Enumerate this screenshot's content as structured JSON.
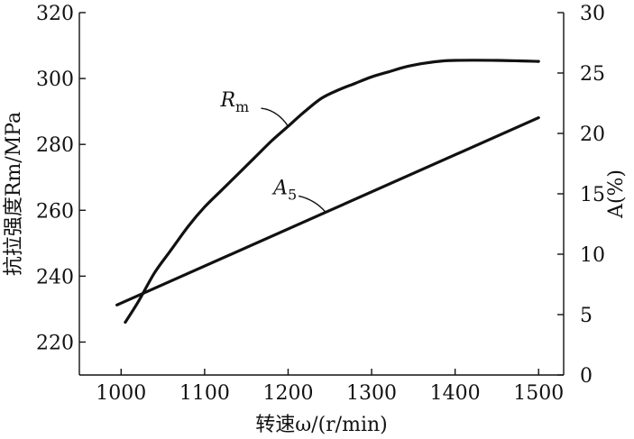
{
  "chart_data": {
    "type": "line",
    "xlabel": "转速ω/(r/min)",
    "ylabel_left": "抗拉强度Rm/MPa",
    "ylabel_right": "A(%)",
    "xlim": [
      950,
      1530
    ],
    "ylim_left": [
      210,
      320
    ],
    "ylim_right": [
      0,
      30
    ],
    "x_ticks": [
      1000,
      1100,
      1200,
      1300,
      1400,
      1500
    ],
    "y_left_ticks": [
      220,
      240,
      260,
      280,
      300,
      320
    ],
    "y_right_ticks": [
      0,
      5,
      10,
      15,
      20,
      25,
      30
    ],
    "grid": false,
    "series": [
      {
        "name": "Rm",
        "name_main": "R",
        "name_sub": "m",
        "axis": "left",
        "points": [
          [
            1005,
            226
          ],
          [
            1020,
            232
          ],
          [
            1040,
            241
          ],
          [
            1060,
            248
          ],
          [
            1080,
            255
          ],
          [
            1100,
            261
          ],
          [
            1120,
            266
          ],
          [
            1140,
            271
          ],
          [
            1160,
            276
          ],
          [
            1180,
            281
          ],
          [
            1200,
            285.5
          ],
          [
            1220,
            290
          ],
          [
            1240,
            294
          ],
          [
            1260,
            296.5
          ],
          [
            1280,
            298.5
          ],
          [
            1300,
            300.5
          ],
          [
            1320,
            302
          ],
          [
            1340,
            303.5
          ],
          [
            1360,
            304.5
          ],
          [
            1380,
            305.2
          ],
          [
            1400,
            305.5
          ],
          [
            1450,
            305.5
          ],
          [
            1500,
            305.2
          ]
        ]
      },
      {
        "name": "A5",
        "name_main": "A",
        "name_sub": "5",
        "axis": "right",
        "points": [
          [
            995,
            5.8
          ],
          [
            1500,
            21.3
          ]
        ]
      }
    ]
  }
}
